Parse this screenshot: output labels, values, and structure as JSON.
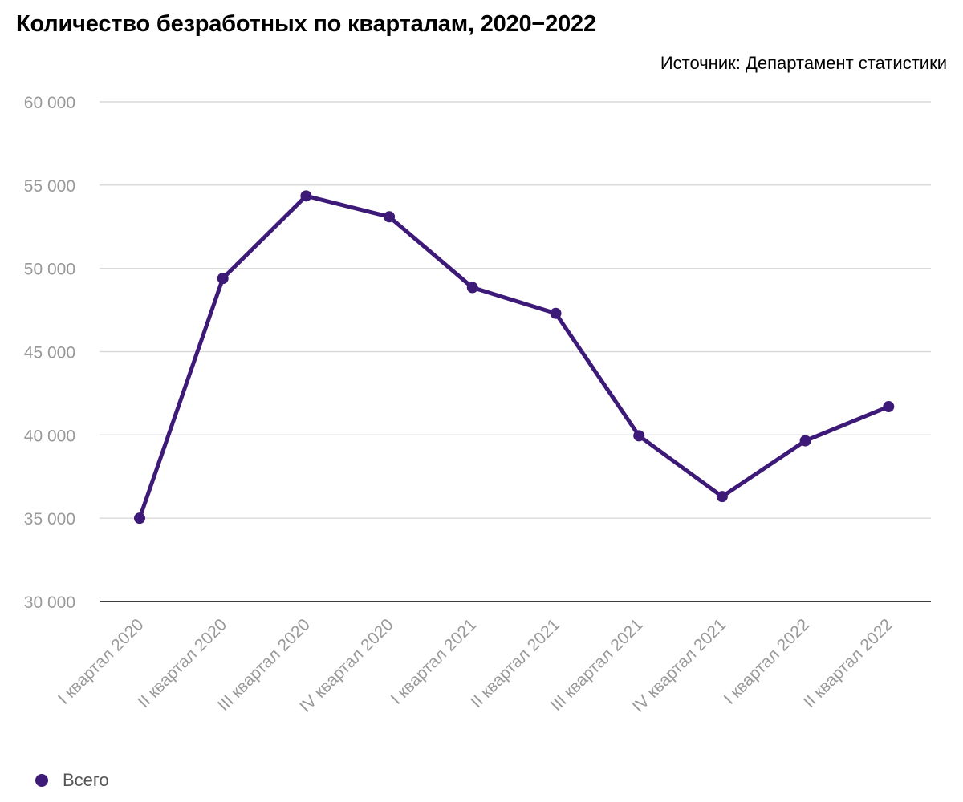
{
  "title": "Количество безработных по кварталам, 2020−2022",
  "source": "Источник: Департамент статистики",
  "colors": {
    "series": "#3d1a78",
    "grid": "#d9d9d9",
    "axis": "#000000",
    "tick": "#999999"
  },
  "chart_data": {
    "type": "line",
    "categories": [
      "I квартал 2020",
      "II квартал 2020",
      "III квартал 2020",
      "IV квартал 2020",
      "I квартал 2021",
      "II квартал 2021",
      "III квартал 2021",
      "IV квартал 2021",
      "I квартал 2022",
      "II квартал 2022"
    ],
    "series": [
      {
        "name": "Всего",
        "values": [
          35000,
          49400,
          54350,
          53100,
          48850,
          47300,
          39950,
          36300,
          39650,
          41700
        ]
      }
    ],
    "yticks": [
      30000,
      35000,
      40000,
      45000,
      50000,
      55000,
      60000
    ],
    "ytick_labels": [
      "30 000",
      "35 000",
      "40 000",
      "45 000",
      "50 000",
      "55 000",
      "60 000"
    ],
    "ylim": [
      30000,
      60000
    ],
    "grid": true,
    "legend_position": "bottom-left"
  }
}
